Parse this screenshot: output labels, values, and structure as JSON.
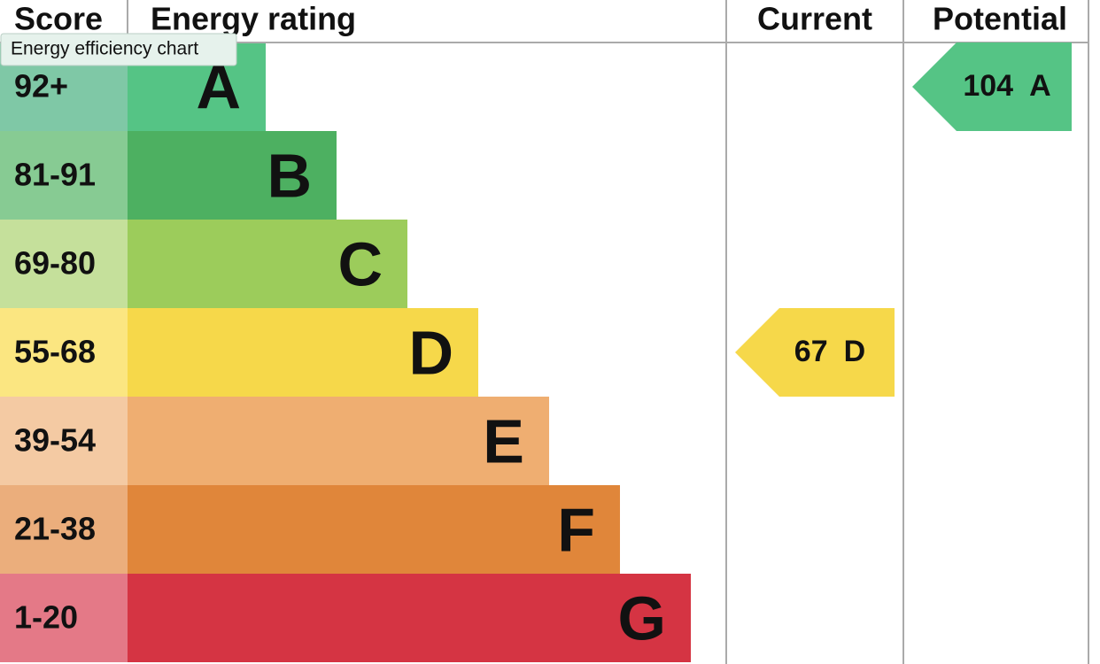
{
  "tooltip": "Energy efficiency chart",
  "headers": {
    "score": "Score",
    "rating": "Energy rating",
    "current": "Current",
    "potential": "Potential"
  },
  "bands": [
    {
      "score": "92+",
      "letter": "A",
      "color": "#55c485",
      "score_color": "#7fc8a6"
    },
    {
      "score": "81-91",
      "letter": "B",
      "color": "#4db061",
      "score_color": "#87cb93"
    },
    {
      "score": "69-80",
      "letter": "C",
      "color": "#9ccc5b",
      "score_color": "#c5e09b"
    },
    {
      "score": "55-68",
      "letter": "D",
      "color": "#f6d84a",
      "score_color": "#fbe681"
    },
    {
      "score": "39-54",
      "letter": "E",
      "color": "#efae71",
      "score_color": "#f4caa3"
    },
    {
      "score": "21-38",
      "letter": "F",
      "color": "#e0863a",
      "score_color": "#ebae7c"
    },
    {
      "score": "1-20",
      "letter": "G",
      "color": "#d53443",
      "score_color": "#e47987"
    }
  ],
  "current": {
    "value": 67,
    "letter": "D"
  },
  "potential": {
    "value": 104,
    "letter": "A"
  }
}
